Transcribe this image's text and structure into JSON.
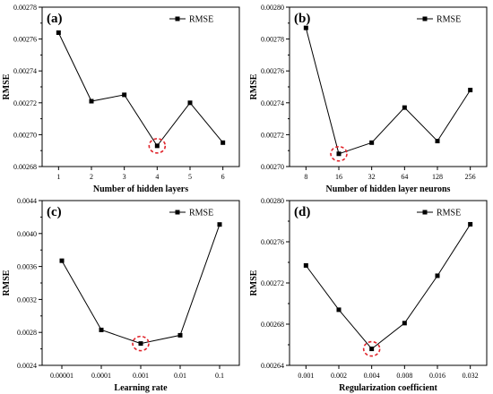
{
  "chart_data": [
    {
      "type": "line",
      "panel_label": "(a)",
      "x_kind": "numeric",
      "categories": [
        "1",
        "2",
        "3",
        "4",
        "5",
        "6"
      ],
      "x_values": [
        1,
        2,
        3,
        4,
        5,
        6
      ],
      "xlim": [
        0.5,
        6.5
      ],
      "series": [
        {
          "name": "RMSE",
          "values": [
            0.002764,
            0.002721,
            0.002725,
            0.002693,
            0.00272,
            0.002695
          ]
        }
      ],
      "ylim": [
        0.00268,
        0.00278
      ],
      "yticks": [
        0.00268,
        0.0027,
        0.00272,
        0.00274,
        0.00276,
        0.00278
      ],
      "ytick_labels": [
        "0.00268",
        "0.00270",
        "0.00272",
        "0.00274",
        "0.00276",
        "0.00278"
      ],
      "xlabel": "Number of hidden layers",
      "ylabel": "RMSE",
      "highlight_index": 3,
      "legend_position": "top-right",
      "grid": false
    },
    {
      "type": "line",
      "panel_label": "(b)",
      "x_kind": "categorical",
      "categories": [
        "8",
        "16",
        "32",
        "64",
        "128",
        "256"
      ],
      "series": [
        {
          "name": "RMSE",
          "values": [
            0.002787,
            0.002708,
            0.002715,
            0.002737,
            0.002716,
            0.002748
          ]
        }
      ],
      "ylim": [
        0.0027,
        0.0028
      ],
      "yticks": [
        0.0027,
        0.00272,
        0.00274,
        0.00276,
        0.00278,
        0.0028
      ],
      "ytick_labels": [
        "0.00270",
        "0.00272",
        "0.00274",
        "0.00276",
        "0.00278",
        "0.00280"
      ],
      "xlabel": "Number of hidden layer neurons",
      "ylabel": "RMSE",
      "highlight_index": 1,
      "legend_position": "top-right",
      "grid": false
    },
    {
      "type": "line",
      "panel_label": "(c)",
      "x_kind": "categorical",
      "categories": [
        "0.00001",
        "0.0001",
        "0.001",
        "0.01",
        "0.1"
      ],
      "series": [
        {
          "name": "RMSE",
          "values": [
            0.00367,
            0.00283,
            0.002665,
            0.002765,
            0.00411
          ]
        }
      ],
      "ylim": [
        0.0024,
        0.0044
      ],
      "yticks": [
        0.0024,
        0.0028,
        0.0032,
        0.0036,
        0.004,
        0.0044
      ],
      "ytick_labels": [
        "0.0024",
        "0.0028",
        "0.0032",
        "0.0036",
        "0.0040",
        "0.0044"
      ],
      "xlabel": "Learning rate",
      "ylabel": "RMSE",
      "highlight_index": 2,
      "legend_position": "top-right",
      "grid": false
    },
    {
      "type": "line",
      "panel_label": "(d)",
      "x_kind": "categorical",
      "categories": [
        "0.001",
        "0.002",
        "0.004",
        "0.008",
        "0.016",
        "0.032"
      ],
      "series": [
        {
          "name": "RMSE",
          "values": [
            0.002737,
            0.002694,
            0.002656,
            0.002681,
            0.002727,
            0.002777
          ]
        }
      ],
      "ylim": [
        0.00264,
        0.0028
      ],
      "yticks": [
        0.00264,
        0.00268,
        0.00272,
        0.00276,
        0.0028
      ],
      "ytick_labels": [
        "0.00264",
        "0.00268",
        "0.00272",
        "0.00276",
        "0.00280"
      ],
      "xlabel": "Regularization coefficient",
      "ylabel": "RMSE",
      "highlight_index": 2,
      "legend_position": "top-right",
      "grid": false
    }
  ],
  "colors": {
    "line": "#000000",
    "highlight": "#e0242b"
  }
}
